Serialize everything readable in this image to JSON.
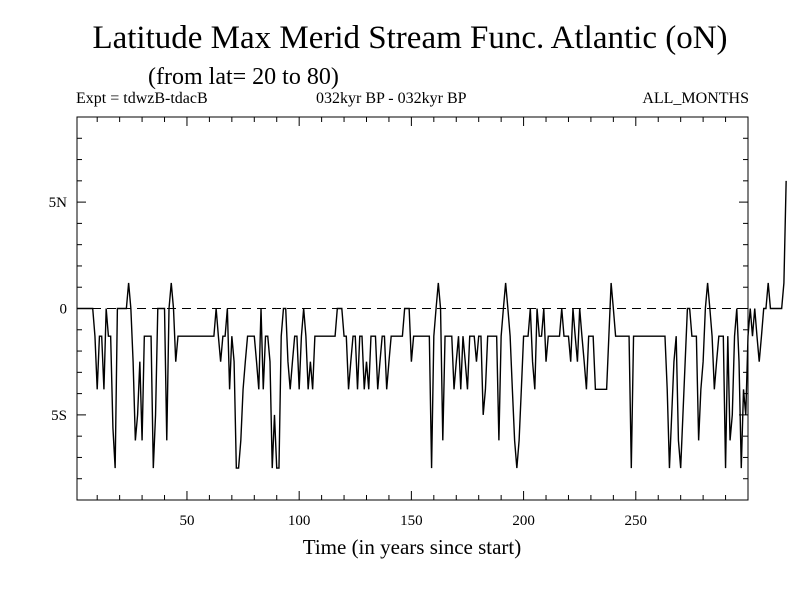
{
  "header": {
    "title": "Latitude Max Merid Stream Func. Atlantic (oN)",
    "subtitle": "(from lat= 20 to 80)",
    "expt": "Expt = tdwzB-tdacB",
    "period": "032kyr BP - 032kyr BP",
    "months": "ALL_MONTHS"
  },
  "chart_data": {
    "type": "line",
    "title": "Latitude Max Merid Stream Func. Atlantic (oN)",
    "subtitle": "(from lat= 20 to 80)",
    "xlabel": "Time (in years since start)",
    "ylabel": "",
    "xlim": [
      1,
      300
    ],
    "ylim": [
      -9,
      9
    ],
    "x_ticks": [
      50,
      100,
      150,
      200,
      250
    ],
    "x_tick_labels": [
      "50",
      "100",
      "150",
      "200",
      "250"
    ],
    "y_ticks": [
      5,
      0,
      -5
    ],
    "y_tick_labels": [
      "5N",
      "0",
      "5S"
    ],
    "zero_line": "dashed",
    "line_color": "#000000",
    "series": [
      {
        "values": [
          0,
          0,
          0,
          0,
          0,
          0,
          0,
          0,
          -1.3,
          -3.8,
          -1.3,
          -1.3,
          -3.8,
          0,
          -1.3,
          -1.3,
          -5.6,
          -7.5,
          0,
          0,
          0,
          0,
          0,
          1.2,
          0,
          -2.5,
          -6.2,
          -5,
          -2.5,
          -6.2,
          -1.3,
          -1.3,
          -1.3,
          -1.3,
          -7.5,
          -5,
          0,
          0,
          0,
          0,
          -6.2,
          0,
          1.2,
          0,
          -2.5,
          -1.3,
          -1.3,
          -1.3,
          -1.3,
          -1.3,
          -1.3,
          -1.3,
          -1.3,
          -1.3,
          -1.3,
          -1.3,
          -1.3,
          -1.3,
          -1.3,
          -1.3,
          -1.3,
          -1.3,
          0,
          -1.3,
          -2.5,
          -1.3,
          -1.3,
          0,
          -3.8,
          -1.3,
          -2.5,
          -7.5,
          -7.5,
          -6.2,
          -3.8,
          -2.5,
          -1.3,
          -1.3,
          -1.3,
          -1.3,
          -2.5,
          -3.8,
          0,
          -3.8,
          -1.3,
          -1.3,
          -2.5,
          -7.5,
          -5,
          -7.5,
          -7.5,
          -1.3,
          0,
          0,
          -2.5,
          -3.8,
          -2.5,
          -1.3,
          -1.3,
          -3.8,
          -1.3,
          0,
          -1.3,
          -3.8,
          -2.5,
          -3.8,
          -1.3,
          -1.3,
          -1.3,
          -1.3,
          -1.3,
          -1.3,
          -1.3,
          -1.3,
          -1.3,
          -1.3,
          0,
          0,
          0,
          -1.3,
          -1.3,
          -3.8,
          -2.5,
          -1.3,
          -1.3,
          -3.8,
          -1.3,
          -1.3,
          -3.8,
          -2.5,
          -3.8,
          -1.3,
          -1.3,
          -1.3,
          -3.8,
          -2.5,
          -1.3,
          -1.3,
          -3.8,
          -2.5,
          -1.3,
          -1.3,
          -1.3,
          -1.3,
          -1.3,
          -1.3,
          0,
          0,
          0,
          -2.5,
          -1.3,
          -1.3,
          -1.3,
          -1.3,
          -1.3,
          -1.3,
          -1.3,
          -1.3,
          -7.5,
          -1.3,
          0,
          1.2,
          0,
          -6.2,
          -1.3,
          -1.3,
          -1.3,
          -1.3,
          -3.8,
          -2.5,
          -1.3,
          -3.8,
          -1.3,
          -2.5,
          -3.8,
          -1.3,
          -1.3,
          -1.3,
          -2.5,
          -1.3,
          -1.3,
          -5,
          -3.8,
          -1.3,
          -1.3,
          -1.3,
          -1.3,
          -1.3,
          -6.2,
          -1.3,
          0,
          1.2,
          0,
          -1.3,
          -3.8,
          -6.2,
          -7.5,
          -6.2,
          -3.8,
          -1.3,
          -1.3,
          -1.3,
          0,
          -2.5,
          -3.8,
          0,
          -1.3,
          -1.3,
          0,
          -2.5,
          -1.3,
          -1.3,
          -1.3,
          -1.3,
          -1.3,
          -1.3,
          0,
          -1.3,
          -1.3,
          -1.3,
          -2.5,
          0,
          -1.3,
          -2.5,
          0,
          -1.3,
          -2.5,
          -3.8,
          -1.3,
          -1.3,
          -1.3,
          -3.8,
          -3.8,
          -3.8,
          -3.8,
          -3.8,
          -3.8,
          -1.3,
          1.2,
          0,
          -1.3,
          -1.3,
          -1.3,
          -1.3,
          -1.3,
          -1.3,
          -1.3,
          -7.5,
          -1.3,
          -1.3,
          -1.3,
          -1.3,
          -1.3,
          -1.3,
          -1.3,
          -1.3,
          -1.3,
          -1.3,
          -1.3,
          -1.3,
          -1.3,
          -1.3,
          -1.3,
          -3.8,
          -7.5,
          -5,
          -2.5,
          -1.3,
          -6.2,
          -7.5,
          -5,
          -2.5,
          0,
          0,
          -1.3,
          -1.3,
          -1.3,
          -6.2,
          -3.8,
          -2.5,
          0,
          1.2,
          0,
          -1.3,
          -3.8,
          -2.5,
          -1.3,
          -1.3,
          -1.3,
          -7.5,
          -1.3,
          -6.2,
          -5,
          -1.3,
          0,
          -2.5,
          -7.5,
          -3.8,
          -5,
          -1.3,
          0,
          -1.3,
          0,
          -1.3,
          -2.5,
          -1.3,
          0,
          0,
          1.2,
          0,
          0,
          0,
          0,
          0,
          0,
          1.2,
          6
        ]
      }
    ]
  }
}
